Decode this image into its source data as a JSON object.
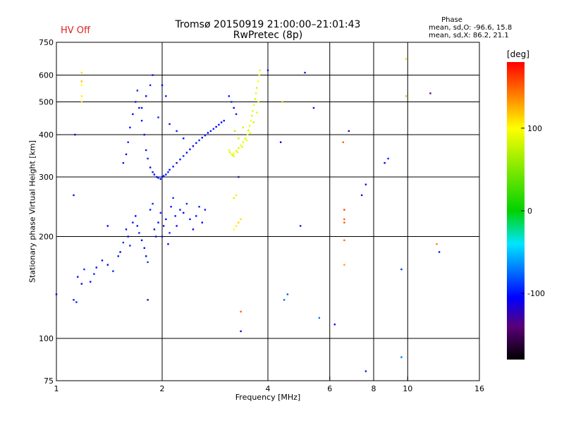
{
  "header": {
    "title_line1": "Tromsø 20150919 21:00:00–21:01:43",
    "title_line2": "RwPretec (8p)",
    "hv_status": "HV Off",
    "hv_color": "#e02020"
  },
  "phase_info": {
    "title": "Phase",
    "line1": "mean, sd,O:  -96.6, 15.8",
    "line2": "mean, sd,X:  86.2, 21.1"
  },
  "colorbar": {
    "unit": "[deg]",
    "range": [
      -180,
      180
    ],
    "ticks": [
      -100,
      0,
      100
    ]
  },
  "chart_data": {
    "type": "scatter",
    "title": "Tromsø 20150919 21:00:00–21:01:43",
    "subtitle": "RwPretec (8p)",
    "xlabel": "Frequency [MHz]",
    "ylabel": "Stationary phase Virtual Height [km]",
    "x_scale": "log",
    "y_scale": "log",
    "xlim": [
      1,
      16
    ],
    "ylim": [
      75,
      750
    ],
    "x_ticks": [
      1,
      2,
      4,
      6,
      8,
      10,
      16
    ],
    "y_ticks": [
      75,
      100,
      200,
      300,
      400,
      500,
      600,
      750
    ],
    "grid_x": [
      2,
      4,
      6,
      8,
      10
    ],
    "grid_y": [
      100,
      200,
      300,
      400,
      500,
      600
    ],
    "color_scale": "rainbow (black to red) over -180 to 180 deg",
    "series": [
      {
        "name": "O",
        "mean": -96.6,
        "sd": 15.8,
        "points": [
          [
            1.0,
            135,
            -105
          ],
          [
            1.12,
            130,
            -100
          ],
          [
            1.14,
            128,
            -95
          ],
          [
            1.18,
            145,
            -110
          ],
          [
            1.15,
            152,
            -100
          ],
          [
            1.2,
            160,
            -90
          ],
          [
            1.25,
            147,
            -100
          ],
          [
            1.3,
            162,
            -105
          ],
          [
            1.28,
            155,
            -95
          ],
          [
            1.35,
            170,
            -100
          ],
          [
            1.4,
            165,
            -110
          ],
          [
            1.45,
            158,
            -95
          ],
          [
            1.5,
            175,
            -100
          ],
          [
            1.52,
            180,
            -105
          ],
          [
            1.55,
            192,
            -90
          ],
          [
            1.58,
            210,
            -100
          ],
          [
            1.6,
            200,
            -110
          ],
          [
            1.62,
            188,
            -95
          ],
          [
            1.65,
            220,
            -100
          ],
          [
            1.68,
            230,
            -105
          ],
          [
            1.7,
            215,
            -100
          ],
          [
            1.72,
            205,
            -95
          ],
          [
            1.75,
            195,
            -110
          ],
          [
            1.78,
            185,
            -100
          ],
          [
            1.8,
            175,
            -105
          ],
          [
            1.82,
            168,
            -90
          ],
          [
            1.85,
            240,
            -100
          ],
          [
            1.88,
            250,
            -95
          ],
          [
            1.9,
            210,
            -110
          ],
          [
            1.92,
            200,
            -100
          ],
          [
            1.95,
            220,
            -105
          ],
          [
            1.98,
            235,
            -95
          ],
          [
            2.0,
            200,
            -100
          ],
          [
            2.02,
            215,
            -110
          ],
          [
            2.05,
            225,
            -100
          ],
          [
            2.08,
            190,
            -105
          ],
          [
            2.1,
            205,
            -95
          ],
          [
            2.12,
            245,
            -100
          ],
          [
            2.15,
            260,
            -90
          ],
          [
            2.18,
            230,
            -100
          ],
          [
            2.2,
            215,
            -105
          ],
          [
            2.25,
            240,
            -100
          ],
          [
            2.3,
            235,
            -110
          ],
          [
            2.35,
            250,
            -95
          ],
          [
            2.4,
            225,
            -100
          ],
          [
            2.45,
            210,
            -105
          ],
          [
            2.5,
            230,
            -100
          ],
          [
            2.55,
            245,
            -95
          ],
          [
            2.6,
            220,
            -110
          ],
          [
            2.65,
            240,
            -100
          ],
          [
            1.55,
            330,
            -100
          ],
          [
            1.58,
            350,
            -110
          ],
          [
            1.6,
            380,
            -95
          ],
          [
            1.62,
            420,
            -100
          ],
          [
            1.65,
            460,
            -105
          ],
          [
            1.68,
            500,
            -100
          ],
          [
            1.7,
            540,
            -95
          ],
          [
            1.72,
            480,
            -110
          ],
          [
            1.75,
            440,
            -100
          ],
          [
            1.78,
            400,
            -105
          ],
          [
            1.8,
            360,
            -100
          ],
          [
            1.82,
            340,
            -95
          ],
          [
            1.85,
            320,
            -110
          ],
          [
            1.88,
            310,
            -100
          ],
          [
            1.9,
            305,
            -105
          ],
          [
            1.93,
            300,
            -100
          ],
          [
            1.95,
            298,
            -95
          ],
          [
            1.98,
            296,
            -110
          ],
          [
            2.0,
            300,
            -100
          ],
          [
            2.02,
            302,
            -105
          ],
          [
            2.05,
            305,
            -100
          ],
          [
            2.08,
            310,
            -95
          ],
          [
            2.1,
            315,
            -110
          ],
          [
            2.15,
            322,
            -100
          ],
          [
            2.2,
            330,
            -105
          ],
          [
            2.25,
            338,
            -100
          ],
          [
            2.3,
            346,
            -95
          ],
          [
            2.35,
            354,
            -110
          ],
          [
            2.4,
            362,
            -100
          ],
          [
            2.45,
            370,
            -105
          ],
          [
            2.5,
            378,
            -100
          ],
          [
            2.55,
            385,
            -95
          ],
          [
            2.6,
            392,
            -110
          ],
          [
            2.65,
            398,
            -100
          ],
          [
            2.7,
            405,
            -105
          ],
          [
            2.75,
            410,
            -100
          ],
          [
            2.8,
            416,
            -95
          ],
          [
            2.85,
            422,
            -110
          ],
          [
            2.9,
            428,
            -100
          ],
          [
            2.95,
            435,
            -105
          ],
          [
            3.0,
            440,
            -100
          ],
          [
            1.75,
            480,
            -100
          ],
          [
            1.8,
            520,
            -110
          ],
          [
            1.85,
            560,
            -95
          ],
          [
            1.88,
            600,
            -100
          ],
          [
            2.0,
            560,
            -105
          ],
          [
            2.05,
            520,
            -100
          ],
          [
            1.95,
            450,
            -95
          ],
          [
            2.1,
            430,
            -110
          ],
          [
            2.2,
            410,
            -100
          ],
          [
            2.3,
            390,
            -105
          ],
          [
            3.1,
            520,
            -100
          ],
          [
            3.15,
            500,
            -95
          ],
          [
            3.2,
            480,
            -110
          ],
          [
            3.25,
            460,
            -100
          ],
          [
            1.12,
            265,
            -100
          ],
          [
            1.13,
            400,
            -110
          ],
          [
            1.4,
            215,
            -105
          ],
          [
            1.82,
            130,
            -120
          ],
          [
            3.3,
            300,
            -130
          ],
          [
            3.35,
            105,
            -110
          ],
          [
            4.0,
            620,
            -100
          ],
          [
            4.35,
            380,
            -105
          ],
          [
            4.95,
            215,
            -100
          ],
          [
            5.4,
            480,
            -110
          ],
          [
            5.1,
            610,
            -100
          ],
          [
            6.2,
            110,
            -105
          ],
          [
            6.8,
            410,
            -120
          ],
          [
            7.4,
            265,
            -100
          ],
          [
            7.6,
            285,
            -110
          ],
          [
            7.6,
            80,
            -100
          ],
          [
            8.6,
            330,
            -105
          ],
          [
            8.8,
            340,
            -95
          ],
          [
            11.6,
            530,
            -140
          ],
          [
            12.3,
            180,
            -100
          ],
          [
            9.6,
            160,
            -90
          ],
          [
            9.6,
            88,
            -70
          ],
          [
            4.55,
            135,
            -80
          ],
          [
            4.45,
            130,
            -75
          ],
          [
            5.6,
            115,
            -70
          ]
        ]
      },
      {
        "name": "X",
        "mean": 86.2,
        "sd": 21.1,
        "points": [
          [
            3.1,
            360,
            90
          ],
          [
            3.12,
            355,
            85
          ],
          [
            3.15,
            350,
            95
          ],
          [
            3.18,
            348,
            80
          ],
          [
            3.2,
            352,
            100
          ],
          [
            3.25,
            358,
            90
          ],
          [
            3.3,
            365,
            85
          ],
          [
            3.35,
            372,
            95
          ],
          [
            3.4,
            380,
            90
          ],
          [
            3.45,
            390,
            85
          ],
          [
            3.5,
            400,
            95
          ],
          [
            3.52,
            412,
            80
          ],
          [
            3.55,
            425,
            90
          ],
          [
            3.58,
            440,
            100
          ],
          [
            3.6,
            455,
            85
          ],
          [
            3.62,
            470,
            90
          ],
          [
            3.65,
            490,
            95
          ],
          [
            3.68,
            510,
            80
          ],
          [
            3.7,
            530,
            90
          ],
          [
            3.72,
            550,
            85
          ],
          [
            3.75,
            575,
            100
          ],
          [
            3.78,
            600,
            90
          ],
          [
            3.8,
            620,
            85
          ],
          [
            3.2,
            345,
            95
          ],
          [
            3.28,
            355,
            90
          ],
          [
            3.38,
            368,
            85
          ],
          [
            3.48,
            385,
            95
          ],
          [
            3.56,
            405,
            90
          ],
          [
            3.64,
            435,
            80
          ],
          [
            3.72,
            465,
            90
          ],
          [
            3.76,
            500,
            95
          ],
          [
            3.22,
            410,
            70
          ],
          [
            3.3,
            390,
            75
          ],
          [
            3.4,
            420,
            80
          ],
          [
            1.18,
            610,
            110
          ],
          [
            1.18,
            575,
            120
          ],
          [
            1.18,
            560,
            100
          ],
          [
            1.18,
            520,
            105
          ],
          [
            1.18,
            500,
            115
          ],
          [
            3.2,
            260,
            110
          ],
          [
            3.25,
            265,
            105
          ],
          [
            3.3,
            220,
            115
          ],
          [
            3.25,
            215,
            105
          ],
          [
            3.35,
            225,
            110
          ],
          [
            3.2,
            210,
            100
          ],
          [
            4.4,
            500,
            120
          ],
          [
            6.55,
            380,
            150
          ],
          [
            6.6,
            240,
            160
          ],
          [
            6.6,
            225,
            150
          ],
          [
            6.6,
            220,
            155
          ],
          [
            6.6,
            195,
            145
          ],
          [
            6.6,
            165,
            130
          ],
          [
            9.9,
            670,
            110
          ],
          [
            9.9,
            520,
            60
          ],
          [
            12.1,
            190,
            140
          ],
          [
            3.35,
            120,
            150
          ]
        ]
      }
    ]
  }
}
